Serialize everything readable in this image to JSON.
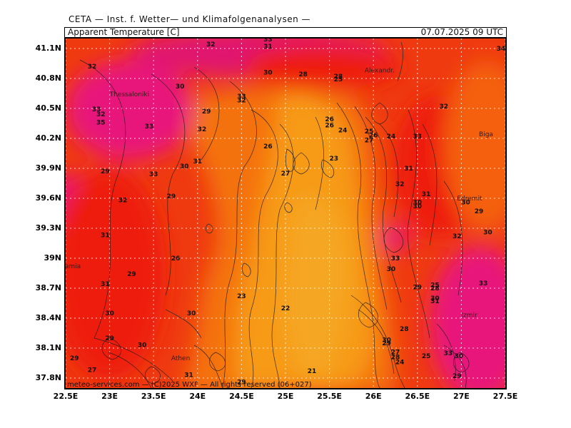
{
  "header": {
    "source": "CETA — Inst. f. Wetter— und Klimafolgenanalysen —",
    "parameter": "Apparent Temperature [C]",
    "datetime": "07.07.2025 09 UTC"
  },
  "copyright": "meteo-services.com — (C)2025 WXF — All rights reserved (06+027)",
  "axes": {
    "y_ticks": [
      "41.1N",
      "40.8N",
      "40.5N",
      "40.2N",
      "39.9N",
      "39.6N",
      "39.3N",
      "39N",
      "38.7N",
      "38.4N",
      "38.1N",
      "37.8N"
    ],
    "x_ticks": [
      "22.5E",
      "23E",
      "23.5E",
      "24E",
      "24.5E",
      "25E",
      "25.5E",
      "26E",
      "26.5E",
      "27E",
      "27.5E"
    ],
    "lon_range": [
      22.5,
      27.5
    ],
    "lat_range": [
      37.7,
      41.2
    ],
    "grid": "dotted"
  },
  "colors": {
    "cold": "#f79a18",
    "mid": "#f25d0f",
    "warm": "#ee1e10",
    "hot": "#e8157a",
    "coolest": "#f5a623"
  },
  "places": [
    {
      "name": "Thessaloniki",
      "lon": 23.0,
      "lat": 40.62
    },
    {
      "name": "Alexandr.",
      "lon": 25.9,
      "lat": 40.86
    },
    {
      "name": "Biga",
      "lon": 27.2,
      "lat": 40.22
    },
    {
      "name": "Lamia",
      "lon": 22.45,
      "lat": 38.9
    },
    {
      "name": "Athen",
      "lon": 23.7,
      "lat": 37.98
    },
    {
      "name": "Izmir",
      "lon": 27.0,
      "lat": 38.41
    },
    {
      "name": "Edremit",
      "lon": 26.95,
      "lat": 39.58
    }
  ],
  "contour_labels": [
    {
      "t": "32",
      "lon": 22.8,
      "lat": 40.9
    },
    {
      "t": "32",
      "lon": 24.15,
      "lat": 41.12
    },
    {
      "t": "31",
      "lon": 24.8,
      "lat": 41.1
    },
    {
      "t": "33",
      "lon": 24.8,
      "lat": 41.17
    },
    {
      "t": "30",
      "lon": 24.8,
      "lat": 40.84
    },
    {
      "t": "28",
      "lon": 25.2,
      "lat": 40.82
    },
    {
      "t": "28",
      "lon": 25.6,
      "lat": 40.8
    },
    {
      "t": "25",
      "lon": 25.6,
      "lat": 40.77
    },
    {
      "t": "30",
      "lon": 23.8,
      "lat": 40.7
    },
    {
      "t": "33",
      "lon": 24.5,
      "lat": 40.6
    },
    {
      "t": "32",
      "lon": 24.5,
      "lat": 40.56
    },
    {
      "t": "29",
      "lon": 24.1,
      "lat": 40.45
    },
    {
      "t": "33",
      "lon": 22.85,
      "lat": 40.47
    },
    {
      "t": "32",
      "lon": 22.9,
      "lat": 40.42
    },
    {
      "t": "35",
      "lon": 22.9,
      "lat": 40.34
    },
    {
      "t": "33",
      "lon": 23.45,
      "lat": 40.3
    },
    {
      "t": "32",
      "lon": 24.05,
      "lat": 40.27
    },
    {
      "t": "26",
      "lon": 25.5,
      "lat": 40.37
    },
    {
      "t": "26",
      "lon": 25.5,
      "lat": 40.31
    },
    {
      "t": "24",
      "lon": 25.65,
      "lat": 40.26
    },
    {
      "t": "25",
      "lon": 25.95,
      "lat": 40.25
    },
    {
      "t": "26",
      "lon": 26.0,
      "lat": 40.21
    },
    {
      "t": "24",
      "lon": 26.2,
      "lat": 40.2
    },
    {
      "t": "27",
      "lon": 25.95,
      "lat": 40.16
    },
    {
      "t": "33",
      "lon": 26.5,
      "lat": 40.2
    },
    {
      "t": "26",
      "lon": 24.8,
      "lat": 40.1
    },
    {
      "t": "23",
      "lon": 25.55,
      "lat": 39.98
    },
    {
      "t": "27",
      "lon": 25.0,
      "lat": 39.83
    },
    {
      "t": "32",
      "lon": 26.8,
      "lat": 40.5
    },
    {
      "t": "31",
      "lon": 24.0,
      "lat": 39.95
    },
    {
      "t": "30",
      "lon": 23.85,
      "lat": 39.9
    },
    {
      "t": "29",
      "lon": 22.95,
      "lat": 39.85
    },
    {
      "t": "33",
      "lon": 23.5,
      "lat": 39.82
    },
    {
      "t": "31",
      "lon": 26.4,
      "lat": 39.88
    },
    {
      "t": "32",
      "lon": 26.3,
      "lat": 39.72
    },
    {
      "t": "31",
      "lon": 26.6,
      "lat": 39.62
    },
    {
      "t": "29",
      "lon": 23.7,
      "lat": 39.6
    },
    {
      "t": "32",
      "lon": 23.15,
      "lat": 39.56
    },
    {
      "t": "30",
      "lon": 26.5,
      "lat": 39.5
    },
    {
      "t": "30",
      "lon": 26.5,
      "lat": 39.54
    },
    {
      "t": "30",
      "lon": 27.05,
      "lat": 39.54
    },
    {
      "t": "29",
      "lon": 27.2,
      "lat": 39.45
    },
    {
      "t": "31",
      "lon": 22.95,
      "lat": 39.21
    },
    {
      "t": "32",
      "lon": 26.95,
      "lat": 39.2
    },
    {
      "t": "30",
      "lon": 27.3,
      "lat": 39.24
    },
    {
      "t": "26",
      "lon": 23.75,
      "lat": 38.98
    },
    {
      "t": "33",
      "lon": 26.25,
      "lat": 38.98
    },
    {
      "t": "30",
      "lon": 26.2,
      "lat": 38.87
    },
    {
      "t": "29",
      "lon": 23.25,
      "lat": 38.82
    },
    {
      "t": "31",
      "lon": 22.95,
      "lat": 38.72
    },
    {
      "t": "33",
      "lon": 27.25,
      "lat": 38.73
    },
    {
      "t": "29",
      "lon": 26.5,
      "lat": 38.69
    },
    {
      "t": "25",
      "lon": 26.7,
      "lat": 38.71
    },
    {
      "t": "28",
      "lon": 26.7,
      "lat": 38.68
    },
    {
      "t": "23",
      "lon": 24.5,
      "lat": 38.6
    },
    {
      "t": "30",
      "lon": 26.7,
      "lat": 38.58
    },
    {
      "t": "31",
      "lon": 26.7,
      "lat": 38.55
    },
    {
      "t": "22",
      "lon": 25.0,
      "lat": 38.48
    },
    {
      "t": "30",
      "lon": 23.0,
      "lat": 38.43
    },
    {
      "t": "30",
      "lon": 23.93,
      "lat": 38.43
    },
    {
      "t": "29",
      "lon": 23.0,
      "lat": 38.18
    },
    {
      "t": "30",
      "lon": 23.37,
      "lat": 38.11
    },
    {
      "t": "28",
      "lon": 26.35,
      "lat": 38.27
    },
    {
      "t": "30",
      "lon": 26.15,
      "lat": 38.16
    },
    {
      "t": "29",
      "lon": 26.15,
      "lat": 38.13
    },
    {
      "t": "27",
      "lon": 26.25,
      "lat": 38.04
    },
    {
      "t": "28",
      "lon": 26.25,
      "lat": 37.99
    },
    {
      "t": "24",
      "lon": 26.3,
      "lat": 37.94
    },
    {
      "t": "25",
      "lon": 26.6,
      "lat": 38.0
    },
    {
      "t": "33",
      "lon": 26.85,
      "lat": 38.03
    },
    {
      "t": "30",
      "lon": 26.97,
      "lat": 38.0
    },
    {
      "t": "29",
      "lon": 22.6,
      "lat": 37.98
    },
    {
      "t": "27",
      "lon": 22.8,
      "lat": 37.86
    },
    {
      "t": "31",
      "lon": 23.9,
      "lat": 37.81
    },
    {
      "t": "29",
      "lon": 24.5,
      "lat": 37.74
    },
    {
      "t": "21",
      "lon": 25.3,
      "lat": 37.85
    },
    {
      "t": "29",
      "lon": 26.95,
      "lat": 37.8
    },
    {
      "t": "34",
      "lon": 27.45,
      "lat": 41.08
    }
  ]
}
